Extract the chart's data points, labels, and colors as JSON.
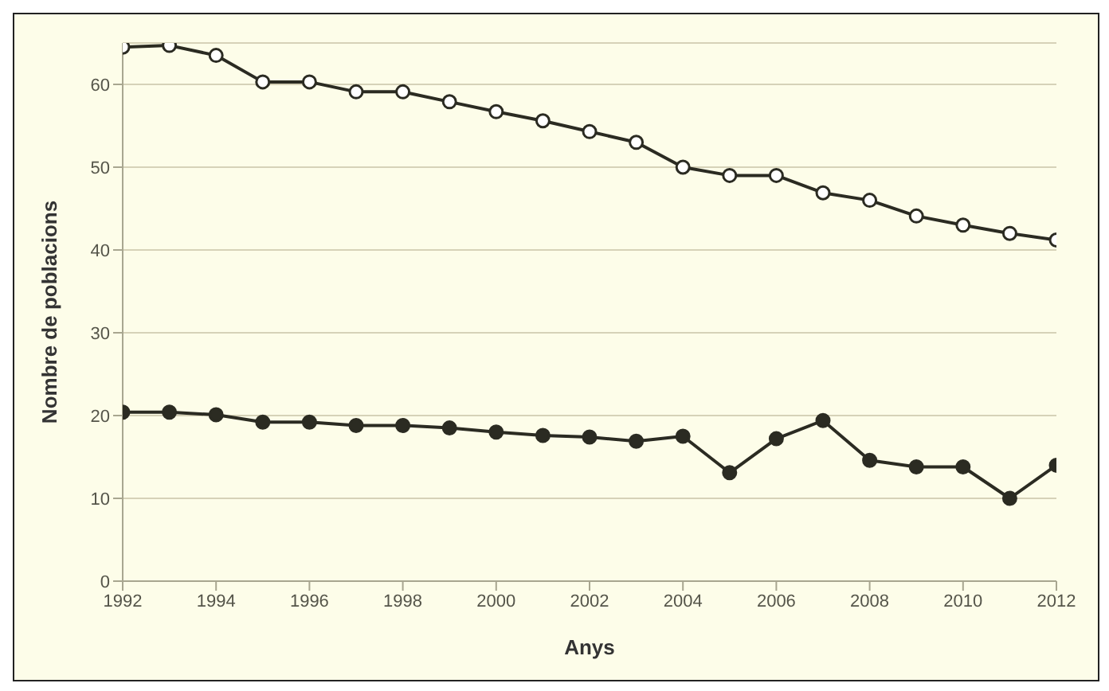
{
  "chart_data": {
    "type": "line",
    "xlabel": "Anys",
    "ylabel": "Nombre de poblacions",
    "x": [
      1992,
      1993,
      1994,
      1995,
      1996,
      1997,
      1998,
      1999,
      2000,
      2001,
      2002,
      2003,
      2004,
      2005,
      2006,
      2007,
      2008,
      2009,
      2010,
      2011,
      2012
    ],
    "series": [
      {
        "color": "#2b2b22",
        "marker": "circle",
        "values": [
          64.5,
          64.7,
          63.5,
          60.3,
          60.3,
          59.1,
          59.1,
          57.9,
          56.7,
          55.6,
          54.3,
          53,
          50,
          49,
          49,
          46.9,
          46,
          44.1,
          43,
          42,
          41.2
        ]
      },
      {
        "color": "#2b2b22",
        "marker": "circle",
        "values": [
          20.4,
          20.4,
          20.1,
          19.2,
          19.2,
          18.8,
          18.8,
          18.5,
          18,
          17.6,
          17.4,
          16.9,
          17.5,
          13.1,
          17.2,
          19.4,
          14.6,
          13.8,
          13.8,
          10,
          14
        ]
      }
    ],
    "xlim": [
      1992,
      2012
    ],
    "xticks": [
      1992,
      1994,
      1996,
      1998,
      2000,
      2002,
      2004,
      2006,
      2008,
      2010,
      2012
    ],
    "ylim": [
      0,
      65
    ],
    "yticks": [
      0,
      10,
      20,
      30,
      40,
      50,
      60
    ],
    "grid": "y",
    "legend": false
  }
}
